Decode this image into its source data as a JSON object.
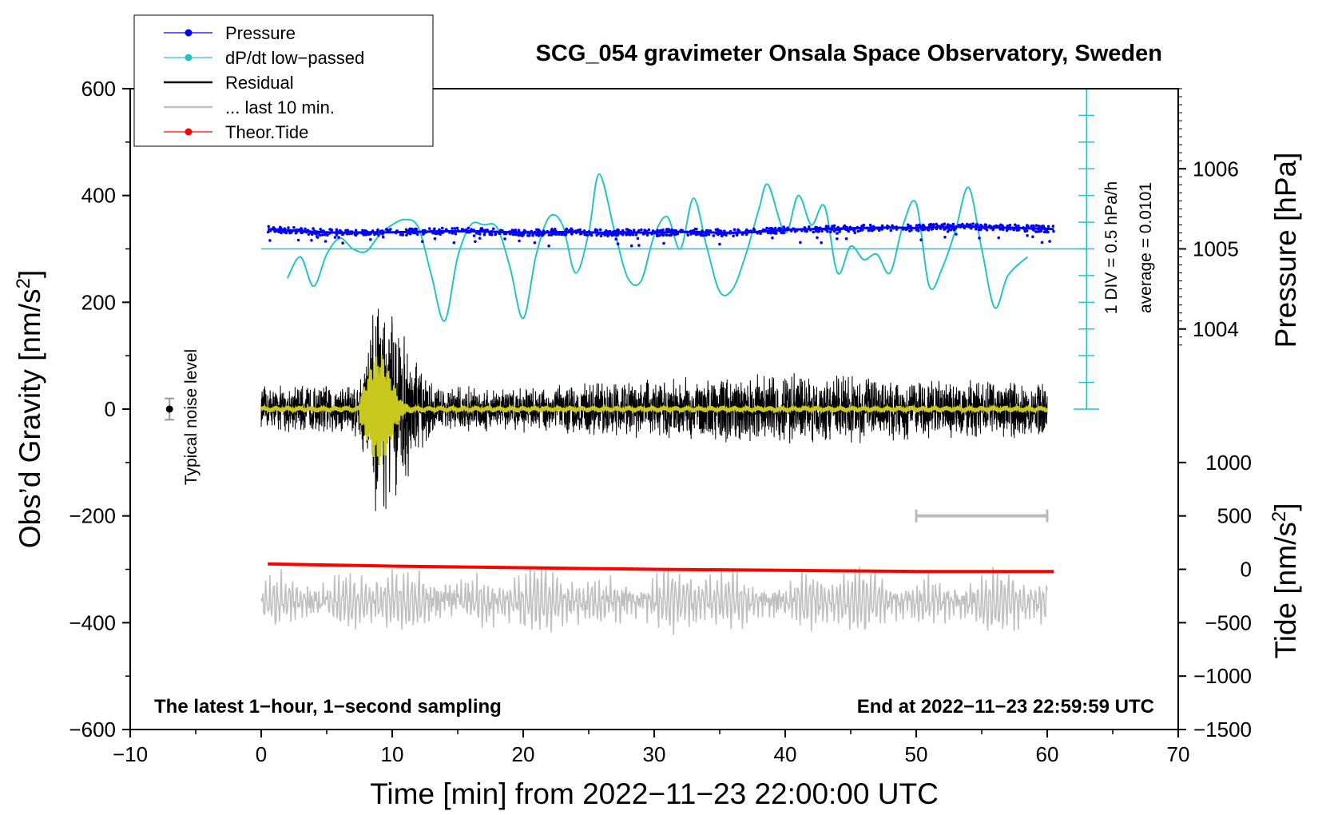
{
  "chart_data": {
    "type": "line",
    "title": "SCG_054 gravimeter Onsala Space Observatory, Sweden",
    "xlabel": "Time [min] from 2022−11−23 22:00:00 UTC",
    "ylabel_left": "Obs’d Gravity [nm/s",
    "ylabel_left_sup": "2",
    "ylabel_left_close": "]",
    "ylabel_right_pressure": "Pressure [hPa]",
    "ylabel_right_tide": "Tide [nm/s",
    "ylabel_right_tide_sup": "2",
    "ylabel_right_tide_close": "]",
    "xlim": [
      -10,
      70
    ],
    "ylim": [
      -600,
      600
    ],
    "x_ticks": [
      -10,
      0,
      10,
      20,
      30,
      40,
      50,
      60,
      70
    ],
    "x_tick_labels": [
      "−10",
      "0",
      "10",
      "20",
      "30",
      "40",
      "50",
      "60",
      "70"
    ],
    "y_ticks": [
      600,
      400,
      200,
      0,
      -200,
      -400,
      -600
    ],
    "y_tick_labels": [
      "600",
      "400",
      "200",
      "0",
      "−200",
      "−400",
      "−600"
    ],
    "pressure_ticks": [
      1006,
      1005,
      1004
    ],
    "pressure_tick_labels": [
      "1006",
      "1005",
      "1004"
    ],
    "pressure_gravity_equiv": [
      450,
      300,
      150
    ],
    "tide_ticks": [
      1000,
      500,
      0,
      -500,
      -1000,
      -1500
    ],
    "tide_tick_labels": [
      "1000",
      "500",
      "0",
      "−500",
      "−1000",
      "−1500"
    ],
    "tide_gravity_equiv": [
      -100,
      -200,
      -300,
      -400,
      -500,
      -600
    ],
    "legend": [
      {
        "label": "Pressure",
        "color": "#0000ff",
        "marker": true
      },
      {
        "label": "dP/dt low−passed",
        "color": "#22c4c4",
        "marker": true
      },
      {
        "label": "Residual",
        "color": "#000000",
        "marker": false
      },
      {
        "label": "... last 10 min.",
        "color": "#c0c0c0",
        "marker": false
      },
      {
        "label": "Theor.Tide",
        "color": "#ff0000",
        "marker": true
      }
    ],
    "colors": {
      "pressure": "#0000ff",
      "dpdt": "#22c4c4",
      "residual": "#000000",
      "residual_filtered": "#c8c81e",
      "last10": "#c0c0c0",
      "tide": "#ff0000",
      "noise": "#999999"
    },
    "annotations": {
      "noise_label": "Typical noise level",
      "div_label": "1 DIV = 0.5 hPa/h",
      "average_label": "average = 0.0101",
      "bottom_left": "The latest 1−hour, 1−second sampling",
      "bottom_right": "End at 2022−11−23 22:59:59 UTC"
    },
    "noise_level": {
      "x": -7,
      "y": 0,
      "err": 20
    },
    "scale_bar": {
      "x_start": 50,
      "x_end": 60,
      "y": -200
    },
    "dpdt_axis": {
      "x": 63,
      "y_from": 0,
      "y_to": 600,
      "zero": 300
    },
    "series": [
      {
        "name": "Pressure",
        "axis": "gravity",
        "x": [
          0.5,
          2,
          4,
          6,
          8,
          10,
          12,
          14,
          16,
          18,
          20,
          22,
          24,
          26,
          28,
          30,
          32,
          34,
          36,
          38,
          40,
          42,
          44,
          46,
          48,
          50,
          52,
          54,
          56,
          58,
          60.5
        ],
        "y": [
          337,
          335,
          332,
          330,
          331,
          331,
          332,
          333,
          333,
          332,
          330,
          331,
          332,
          330,
          331,
          330,
          332,
          331,
          330,
          332,
          336,
          337,
          338,
          339,
          340,
          339,
          341,
          342,
          340,
          339,
          337
        ]
      },
      {
        "name": "dP/dt low-passed",
        "axis": "gravity",
        "x": [
          2,
          3,
          4,
          5,
          6,
          7,
          8,
          9,
          10,
          11,
          12,
          13,
          14,
          15,
          16,
          17,
          18,
          19,
          20,
          21,
          22,
          23,
          24,
          25,
          25.8,
          27,
          28,
          29,
          30,
          31,
          32,
          33,
          34,
          35,
          36,
          37,
          38,
          38.7,
          40,
          41,
          42,
          43,
          44,
          45,
          46,
          47,
          48,
          49,
          50,
          51,
          52,
          53,
          54,
          55,
          56,
          57,
          58.5
        ],
        "y": [
          245,
          285,
          230,
          290,
          320,
          300,
          295,
          325,
          345,
          355,
          340,
          250,
          165,
          285,
          345,
          345,
          340,
          265,
          170,
          290,
          360,
          345,
          255,
          330,
          440,
          330,
          245,
          240,
          325,
          360,
          300,
          395,
          305,
          220,
          225,
          290,
          375,
          420,
          330,
          400,
          345,
          380,
          255,
          305,
          280,
          290,
          255,
          345,
          385,
          230,
          265,
          335,
          415,
          300,
          190,
          250,
          285
        ]
      },
      {
        "name": "Theor.Tide",
        "axis": "gravity",
        "x": [
          0.5,
          10,
          20,
          30,
          40,
          50,
          60.5
        ],
        "y": [
          -290,
          -294,
          -297,
          -300,
          -302,
          -304,
          -304
        ]
      }
    ],
    "residual_envelope": {
      "x": [
        0,
        5,
        7.5,
        8.5,
        9.3,
        10,
        11,
        12.5,
        13.5,
        20,
        30,
        40,
        50,
        55,
        60
      ],
      "amp": [
        45,
        50,
        60,
        200,
        210,
        200,
        150,
        70,
        45,
        45,
        60,
        70,
        60,
        60,
        55
      ]
    },
    "last10_band": {
      "center": -360,
      "amp": 50,
      "x_from": 0,
      "x_to": 60
    }
  }
}
